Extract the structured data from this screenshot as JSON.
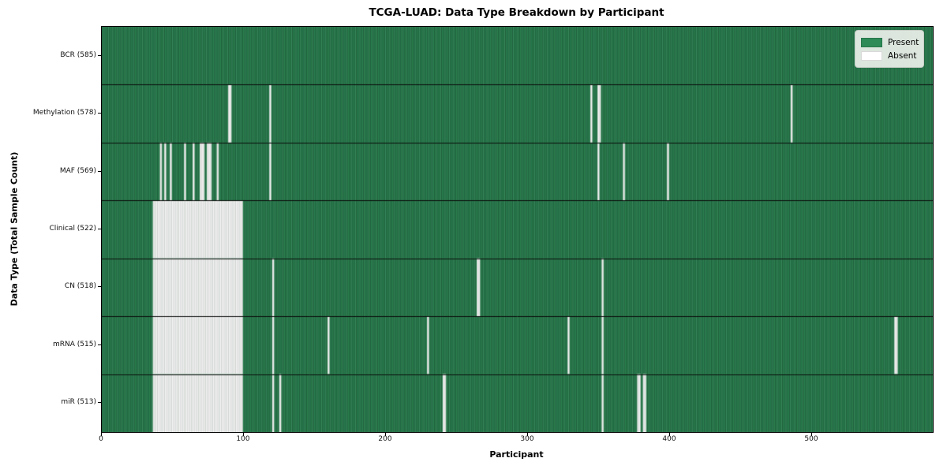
{
  "title": "TCGA-LUAD: Data Type Breakdown by Participant",
  "axes": {
    "xlabel": "Participant",
    "ylabel": "Data Type (Total Sample Count)"
  },
  "legend": {
    "entries": [
      {
        "label": "Present",
        "color": "#2e8b57"
      },
      {
        "label": "Absent",
        "color": "#ffffff"
      }
    ]
  },
  "chart_data": {
    "type": "heatmap",
    "title": "TCGA-LUAD: Data Type Breakdown by Participant",
    "xlabel": "Participant",
    "ylabel": "Data Type (Total Sample Count)",
    "x_range": [
      0,
      585
    ],
    "x_ticks": [
      0,
      100,
      200,
      300,
      400,
      500
    ],
    "grid": "cell-borders",
    "legend_position": "upper-right",
    "colors": {
      "present": "#2e8b57",
      "absent": "#ffffff",
      "cell_edge_on_green": "rgba(0,0,0,0.50)",
      "cell_edge_on_white": "#bcbcbc",
      "row_divider": "#0a0a0a"
    },
    "rows": [
      {
        "label": "BCR (585)",
        "data_type": "BCR",
        "total_samples": 585,
        "absent_ranges": [],
        "absent": []
      },
      {
        "label": "Methylation (578)",
        "data_type": "Methylation",
        "total_samples": 578,
        "absent_ranges": [],
        "absent": [
          89,
          90,
          118,
          344,
          349,
          350,
          485
        ]
      },
      {
        "label": "MAF (569)",
        "data_type": "MAF",
        "total_samples": 569,
        "absent_ranges": [],
        "absent": [
          41,
          44,
          48,
          58,
          64,
          69,
          70,
          71,
          74,
          75,
          76,
          81,
          118,
          349,
          367,
          398
        ]
      },
      {
        "label": "Clinical (522)",
        "data_type": "Clinical",
        "total_samples": 522,
        "absent_ranges": [
          [
            36,
            98
          ]
        ],
        "absent": []
      },
      {
        "label": "CN (518)",
        "data_type": "CN",
        "total_samples": 518,
        "absent_ranges": [
          [
            36,
            98
          ]
        ],
        "absent": [
          120,
          264,
          265,
          352
        ]
      },
      {
        "label": "mRNA (515)",
        "data_type": "mRNA",
        "total_samples": 515,
        "absent_ranges": [
          [
            36,
            98
          ]
        ],
        "absent": [
          120,
          159,
          229,
          328,
          352,
          558,
          559
        ]
      },
      {
        "label": "miR (513)",
        "data_type": "miR",
        "total_samples": 513,
        "absent_ranges": [
          [
            36,
            98
          ]
        ],
        "absent": [
          120,
          125,
          240,
          241,
          352,
          377,
          378,
          381,
          382
        ]
      }
    ]
  }
}
